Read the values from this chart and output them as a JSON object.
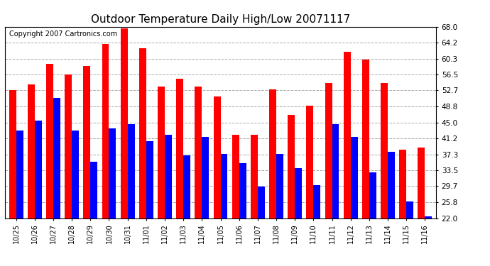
{
  "title": "Outdoor Temperature Daily High/Low 20071117",
  "copyright": "Copyright 2007 Cartronics.com",
  "x_labels": [
    "10/25",
    "10/26",
    "10/27",
    "10/28",
    "10/29",
    "10/30",
    "10/31",
    "11/01",
    "11/02",
    "11/03",
    "11/04",
    "11/05",
    "11/06",
    "11/07",
    "11/08",
    "11/09",
    "11/10",
    "11/11",
    "11/12",
    "11/13",
    "11/14",
    "11/15",
    "11/16"
  ],
  "highs": [
    52.7,
    54.1,
    59.0,
    56.5,
    58.5,
    63.9,
    67.5,
    62.8,
    53.6,
    55.5,
    53.6,
    51.2,
    42.0,
    42.0,
    53.0,
    46.8,
    49.0,
    54.5,
    62.0,
    60.0,
    54.5,
    38.5,
    39.0
  ],
  "lows": [
    43.0,
    45.5,
    50.9,
    43.0,
    35.5,
    43.5,
    44.5,
    40.5,
    42.0,
    37.0,
    41.5,
    37.5,
    35.2,
    29.5,
    37.5,
    34.0,
    30.0,
    44.5,
    41.5,
    33.0,
    38.0,
    26.0,
    22.5
  ],
  "high_color": "#ff0000",
  "low_color": "#0000ff",
  "bg_color": "#ffffff",
  "plot_bg_color": "#ffffff",
  "grid_color": "#aaaaaa",
  "yticks": [
    22.0,
    25.8,
    29.7,
    33.5,
    37.3,
    41.2,
    45.0,
    48.8,
    52.7,
    56.5,
    60.3,
    64.2,
    68.0
  ],
  "ymin": 22.0,
  "ymax": 68.0,
  "title_fontsize": 11,
  "copyright_fontsize": 7
}
